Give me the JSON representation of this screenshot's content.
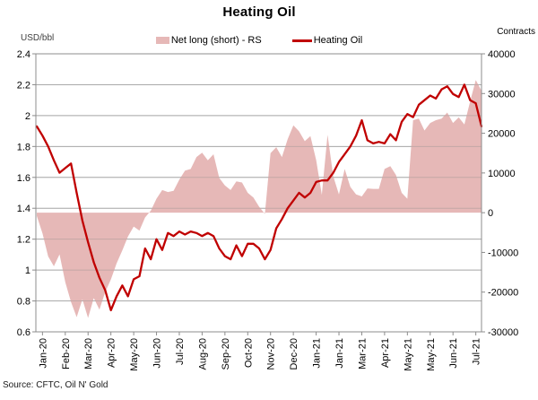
{
  "chart_data": {
    "type": "area+line combo",
    "title": "Heating Oil",
    "source": "Source: CFTC, Oil N' Gold",
    "ylabel_left": "USD/bbl",
    "ylabel_right": "Contracts",
    "legend": [
      "Net long (short) - RS",
      "Heating Oil"
    ],
    "x_tick_labels": [
      "Jan-20",
      "Feb-20",
      "Mar-20",
      "Apr-20",
      "May-20",
      "Jun-20",
      "Jul-20",
      "Aug-20",
      "Sep-20",
      "Oct-20",
      "Nov-20",
      "Dec-20",
      "Jan-21",
      "Jan-21",
      "Mar-21",
      "Apr-21",
      "May-21",
      "May-21",
      "Jun-21",
      "Jul-21"
    ],
    "x_tick_every": 4,
    "x_tick_start_index": 1,
    "left_axis": {
      "min": 0.6,
      "max": 2.4,
      "tick_labels": [
        "2.4",
        "2.2",
        "2",
        "1.8",
        "1.6",
        "1.4",
        "1.2",
        "1",
        "0.8",
        "0.6"
      ],
      "tick_values": [
        2.4,
        2.2,
        2.0,
        1.8,
        1.6,
        1.4,
        1.2,
        1.0,
        0.8,
        0.6
      ]
    },
    "right_axis": {
      "min": -30000,
      "max": 40000,
      "tick_labels": [
        "40000",
        "30000",
        "20000",
        "10000",
        "0",
        "-10000",
        "-20000",
        "-30000"
      ],
      "tick_values": [
        40000,
        30000,
        20000,
        10000,
        0,
        -10000,
        -20000,
        -30000
      ]
    },
    "grid": true,
    "legend_position": "top",
    "series": [
      {
        "name": "Net long (short) - RS",
        "type": "area",
        "axis": "right",
        "color": "#E6B8B7",
        "values": [
          -800,
          -5200,
          -11000,
          -13500,
          -10500,
          -17500,
          -22500,
          -26300,
          -21800,
          -26500,
          -21500,
          -24400,
          -20000,
          -16800,
          -12800,
          -9500,
          -6000,
          -3500,
          -4500,
          -1200,
          500,
          3500,
          5700,
          5200,
          5500,
          8350,
          10600,
          11000,
          14000,
          15100,
          13200,
          14700,
          8750,
          6850,
          5700,
          7900,
          7600,
          5000,
          3800,
          1500,
          -300,
          15000,
          16500,
          14000,
          18500,
          22000,
          20500,
          18000,
          19300,
          13250,
          4500,
          19600,
          9100,
          4600,
          11000,
          6500,
          4600,
          4100,
          6100,
          6000,
          6000,
          11000,
          11700,
          9500,
          5000,
          3500,
          23300,
          23700,
          20700,
          22600,
          23300,
          23700,
          25200,
          22600,
          24000,
          22200,
          28000,
          33400,
          30700
        ]
      },
      {
        "name": "Heating Oil",
        "type": "line",
        "axis": "left",
        "color": "#C00000",
        "values": [
          1.93,
          1.87,
          1.8,
          1.71,
          1.63,
          1.66,
          1.69,
          1.5,
          1.32,
          1.18,
          1.05,
          0.95,
          0.87,
          0.74,
          0.83,
          0.9,
          0.83,
          0.94,
          0.96,
          1.14,
          1.07,
          1.2,
          1.13,
          1.24,
          1.22,
          1.25,
          1.23,
          1.25,
          1.24,
          1.22,
          1.24,
          1.22,
          1.14,
          1.09,
          1.07,
          1.16,
          1.09,
          1.17,
          1.17,
          1.14,
          1.07,
          1.13,
          1.27,
          1.33,
          1.4,
          1.45,
          1.5,
          1.47,
          1.5,
          1.57,
          1.58,
          1.58,
          1.63,
          1.7,
          1.75,
          1.8,
          1.87,
          1.97,
          1.84,
          1.82,
          1.83,
          1.82,
          1.88,
          1.84,
          1.96,
          2.01,
          1.99,
          2.07,
          2.1,
          2.13,
          2.11,
          2.17,
          2.19,
          2.14,
          2.12,
          2.2,
          2.1,
          2.08,
          1.93
        ]
      }
    ],
    "colors": {
      "area_fill": "#E6B8B7",
      "line": "#C00000",
      "gridline": "#BDBDBD",
      "axis": "#8C8C8C",
      "background": "#FFFFFF",
      "text": "#000000"
    }
  }
}
